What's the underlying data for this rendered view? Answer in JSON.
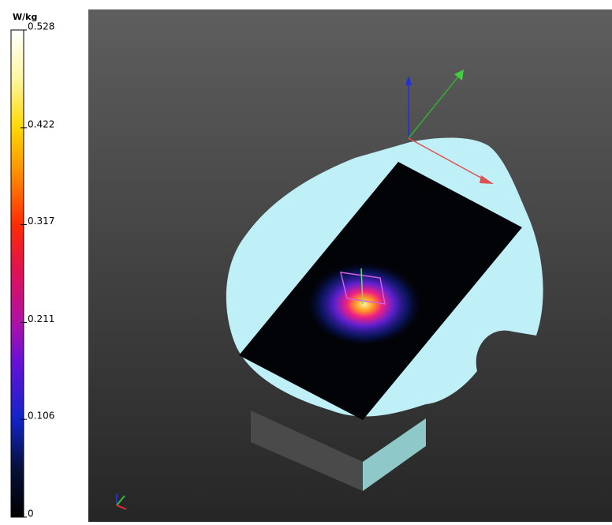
{
  "colorbar": {
    "unit": "W/kg",
    "ticks": [
      0.528,
      0.422,
      0.317,
      0.211,
      0.106,
      0
    ]
  }
}
